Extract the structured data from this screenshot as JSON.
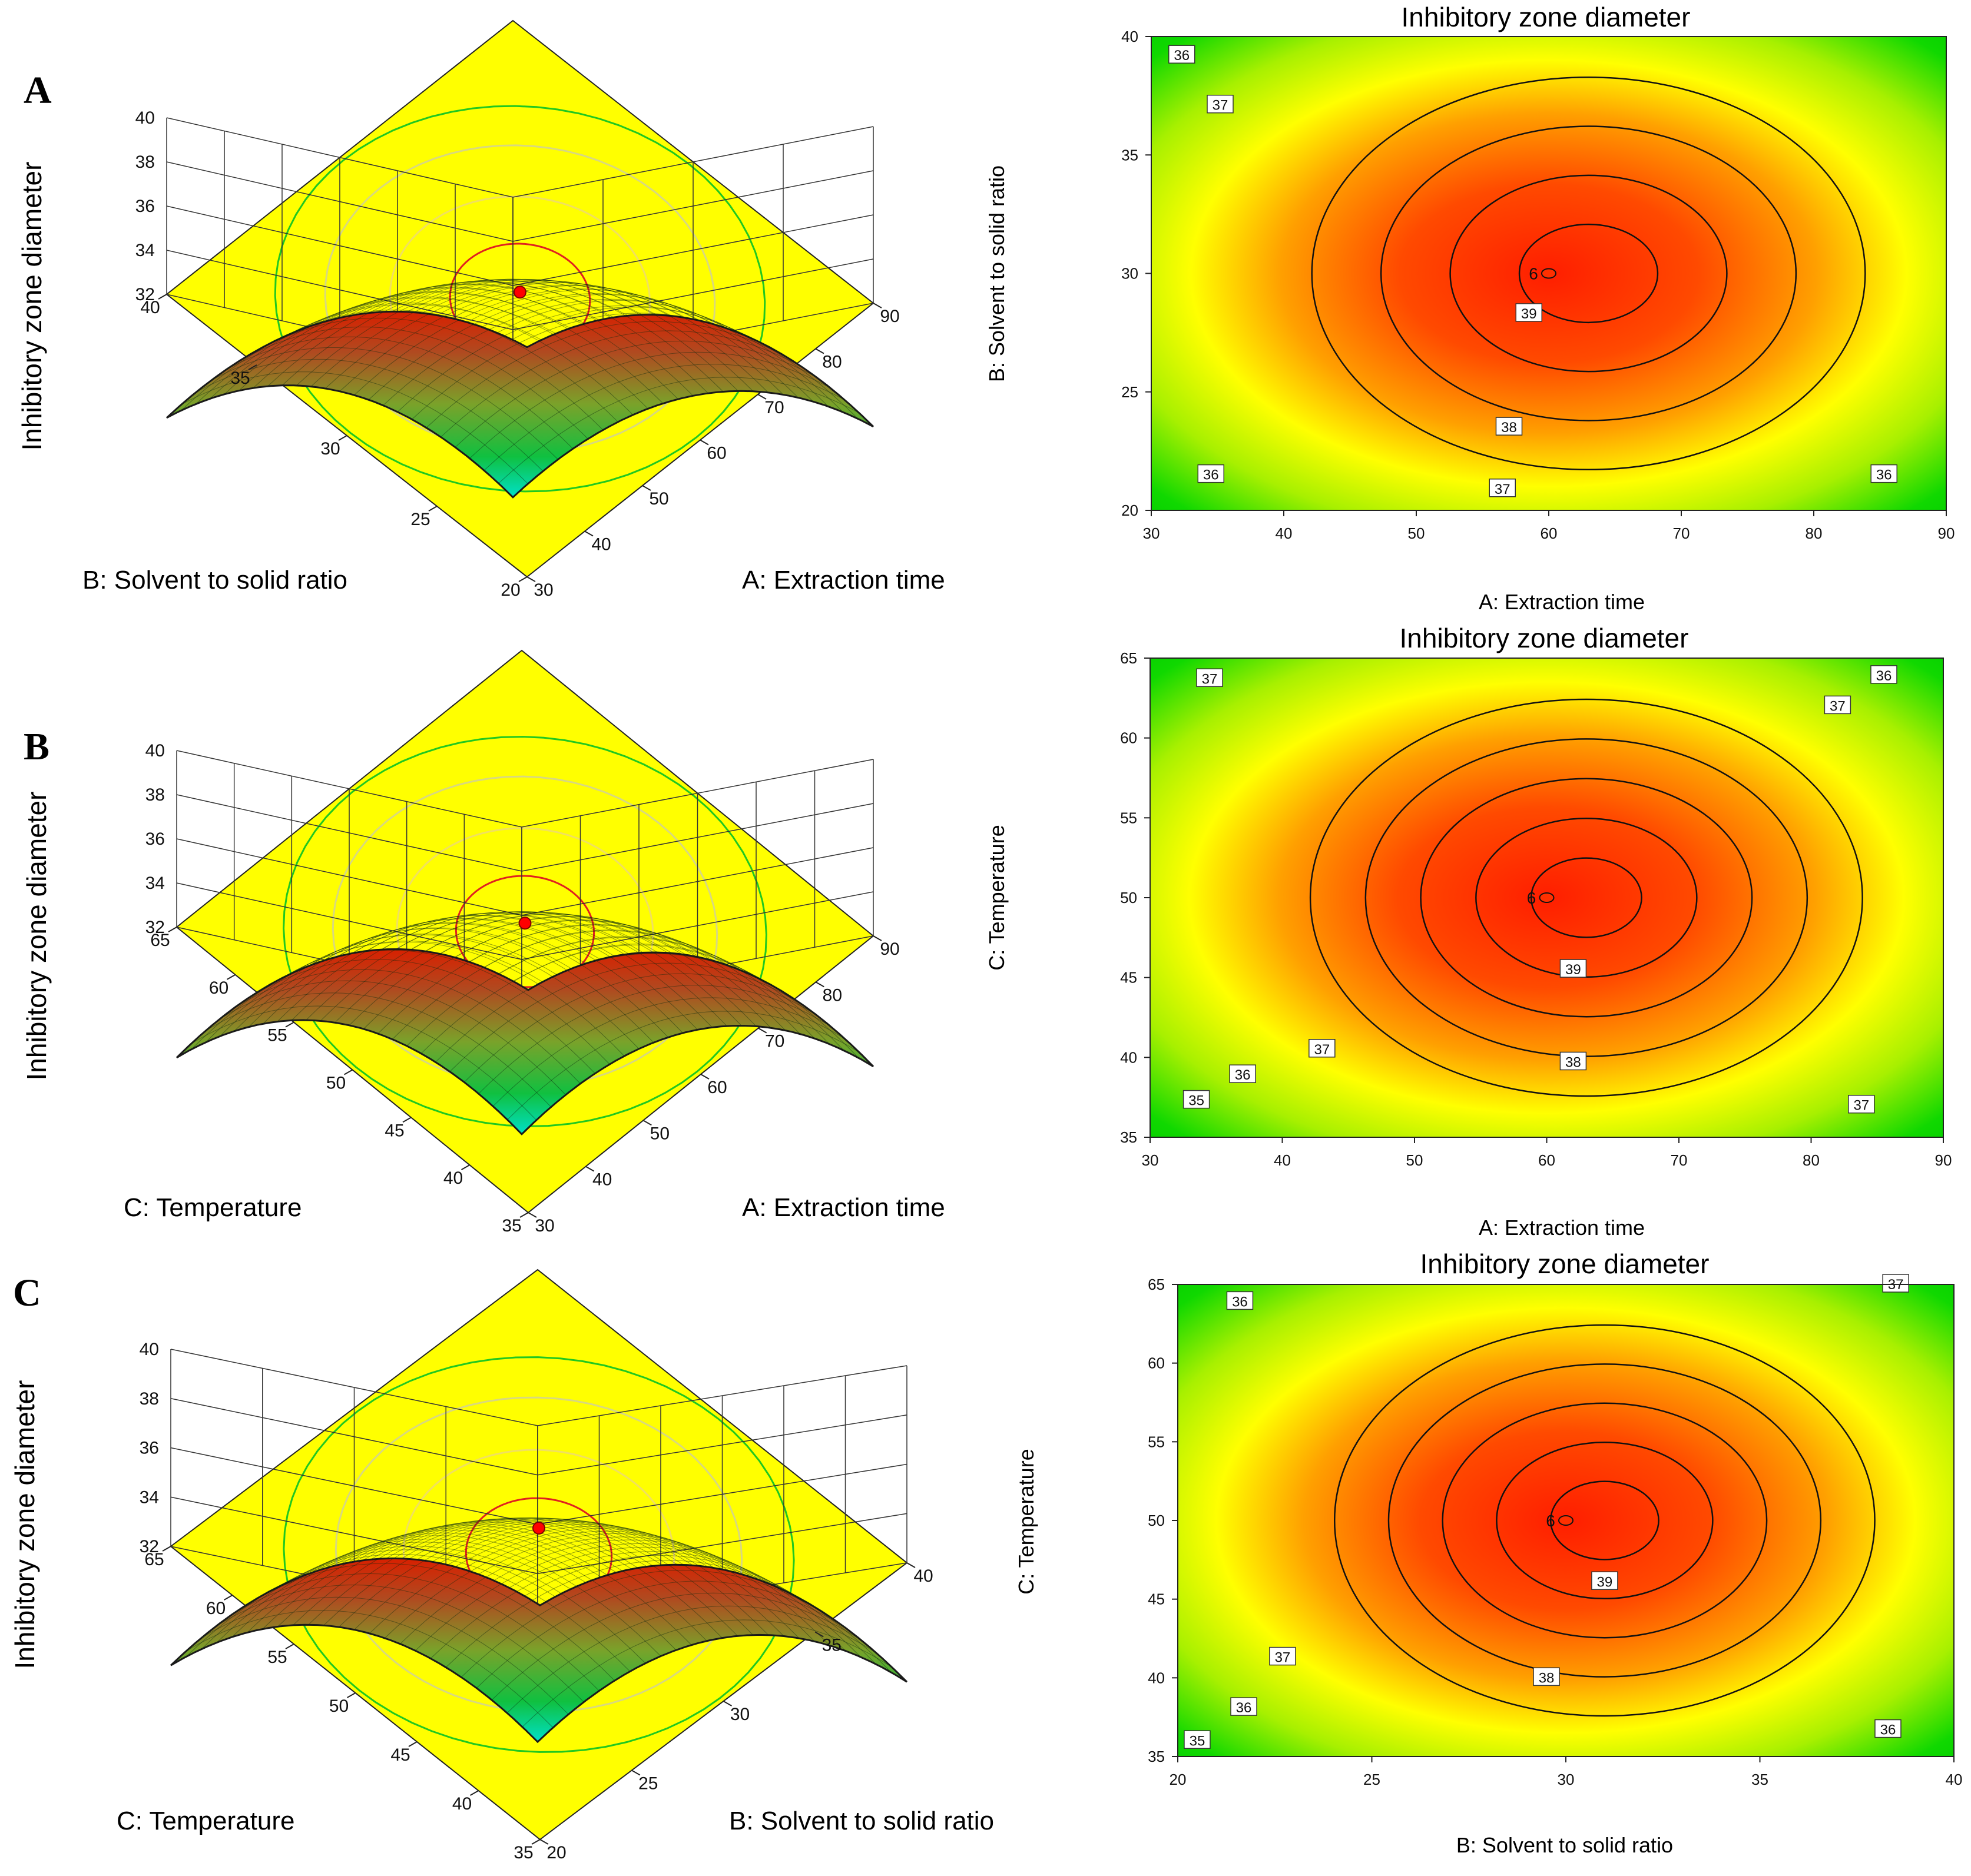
{
  "figure": {
    "panel_labels": [
      "A",
      "B",
      "C"
    ],
    "colors": {
      "low": "#00e0c8",
      "green": "#00d400",
      "yellow": "#ffff00",
      "orange": "#ff9a00",
      "red": "#ff1e00",
      "floor": "#ffff00",
      "point": "#ff0000"
    }
  },
  "chart_data": [
    {
      "type": "surface3d",
      "panel": "A",
      "zlabel": "Inhibitory zone diameter",
      "xlabel": "A: Extraction time",
      "ylabel": "B: Solvent to solid ratio",
      "xlim": [
        30,
        90
      ],
      "ylim": [
        20,
        40
      ],
      "zlim": [
        32,
        40
      ],
      "xticks": [
        30,
        40,
        50,
        60,
        70,
        80,
        90
      ],
      "yticks": [
        20,
        25,
        30,
        35,
        40
      ],
      "zticks": [
        32,
        34,
        36,
        38,
        40
      ],
      "model": {
        "max": 39.5,
        "x0": 60,
        "y0": 30,
        "ax": 30,
        "ay": 10,
        "ka": 3.0,
        "kb": 3.0
      },
      "optimum_point": {
        "x": 60,
        "y": 30,
        "z": 39.5
      },
      "corner_values": [
        35.5,
        35.5,
        33.5,
        33.5
      ]
    },
    {
      "type": "contour",
      "panel": "A",
      "title": "Inhibitory zone diameter",
      "xlabel": "A: Extraction time",
      "ylabel": "B: Solvent to solid ratio",
      "xlim": [
        30,
        90
      ],
      "ylim": [
        20,
        40
      ],
      "xticks": [
        "30",
        "40",
        "50",
        "60",
        "70",
        "80",
        "90"
      ],
      "yticks": [
        "20",
        "25",
        "30",
        "35",
        "40"
      ],
      "levels": [
        36,
        37,
        38,
        39
      ],
      "contour_labels": [
        {
          "text": "36",
          "x": 32.3,
          "y": 39.2
        },
        {
          "text": "37",
          "x": 35.2,
          "y": 37.1
        },
        {
          "text": "39",
          "x": 58.5,
          "y": 28.3
        },
        {
          "text": "38",
          "x": 57.0,
          "y": 23.5
        },
        {
          "text": "36",
          "x": 34.5,
          "y": 21.5
        },
        {
          "text": "37",
          "x": 56.5,
          "y": 20.9
        },
        {
          "text": "36",
          "x": 85.3,
          "y": 21.5
        }
      ],
      "design_point": {
        "label": "6",
        "x": 60,
        "y": 30
      }
    },
    {
      "type": "surface3d",
      "panel": "B",
      "zlabel": "Inhibitory zone diameter",
      "xlabel": "A: Extraction time",
      "ylabel": "C: Temperature",
      "xlim": [
        30,
        90
      ],
      "ylim": [
        35,
        65
      ],
      "zlim": [
        32,
        40
      ],
      "xticks": [
        30,
        40,
        50,
        60,
        70,
        80,
        90
      ],
      "yticks": [
        35,
        40,
        45,
        50,
        55,
        60,
        65
      ],
      "zticks": [
        32,
        34,
        36,
        38,
        40
      ],
      "model": {
        "max": 39.5,
        "x0": 60,
        "y0": 50,
        "ax": 30,
        "ay": 15,
        "ka": 3.2,
        "kb": 3.2
      },
      "optimum_point": {
        "x": 60,
        "y": 50,
        "z": 39.5
      },
      "corner_values": [
        36.0,
        36.0,
        33.0,
        33.0
      ]
    },
    {
      "type": "contour",
      "panel": "B",
      "title": "Inhibitory zone diameter",
      "xlabel": "A: Extraction time",
      "ylabel": "C: Temperature",
      "xlim": [
        30,
        90
      ],
      "ylim": [
        35,
        65
      ],
      "xticks": [
        "30",
        "40",
        "50",
        "60",
        "70",
        "80",
        "90"
      ],
      "yticks": [
        "35",
        "40",
        "45",
        "50",
        "55",
        "60",
        "65"
      ],
      "levels": [
        35,
        36,
        37,
        38,
        39
      ],
      "contour_labels": [
        {
          "text": "37",
          "x": 34.5,
          "y": 63.7
        },
        {
          "text": "36",
          "x": 85.5,
          "y": 63.9
        },
        {
          "text": "37",
          "x": 82.0,
          "y": 62.0
        },
        {
          "text": "39",
          "x": 62.0,
          "y": 45.5
        },
        {
          "text": "37",
          "x": 43.0,
          "y": 40.5
        },
        {
          "text": "38",
          "x": 62.0,
          "y": 39.7
        },
        {
          "text": "36",
          "x": 37.0,
          "y": 38.9
        },
        {
          "text": "35",
          "x": 33.5,
          "y": 37.3
        },
        {
          "text": "37",
          "x": 83.8,
          "y": 37.0
        }
      ],
      "design_point": {
        "label": "6",
        "x": 60,
        "y": 50
      }
    },
    {
      "type": "surface3d",
      "panel": "C",
      "zlabel": "Inhibitory zone diameter",
      "xlabel": "B: Solvent to solid ratio",
      "ylabel": "C: Temperature",
      "xlim": [
        20,
        40
      ],
      "ylim": [
        35,
        65
      ],
      "zlim": [
        32,
        40
      ],
      "xticks": [
        20,
        25,
        30,
        35,
        40
      ],
      "yticks": [
        35,
        40,
        45,
        50,
        55,
        60,
        65
      ],
      "zticks": [
        32,
        34,
        36,
        38,
        40
      ],
      "model": {
        "max": 39.5,
        "x0": 30,
        "y0": 50,
        "ax": 10,
        "ay": 15,
        "ka": 3.0,
        "kb": 3.0
      },
      "optimum_point": {
        "x": 30,
        "y": 50,
        "z": 39.5
      },
      "corner_values": [
        35.3,
        35.3,
        33.5,
        33.5
      ]
    },
    {
      "type": "contour",
      "panel": "C",
      "title": "Inhibitory zone diameter",
      "xlabel": "B: Solvent to solid ratio",
      "ylabel": "C: Temperature",
      "xlim": [
        20,
        40
      ],
      "ylim": [
        35,
        65
      ],
      "xticks": [
        "20",
        "25",
        "30",
        "35",
        "40"
      ],
      "yticks": [
        "35",
        "40",
        "45",
        "50",
        "55",
        "60",
        "65"
      ],
      "levels": [
        35,
        36,
        37,
        38,
        39
      ],
      "contour_labels": [
        {
          "text": "36",
          "x": 21.6,
          "y": 63.9
        },
        {
          "text": "37",
          "x": 38.5,
          "y": 65.0
        },
        {
          "text": "39",
          "x": 31.0,
          "y": 46.1
        },
        {
          "text": "37",
          "x": 22.7,
          "y": 41.3
        },
        {
          "text": "38",
          "x": 29.5,
          "y": 40.0
        },
        {
          "text": "36",
          "x": 21.7,
          "y": 38.1
        },
        {
          "text": "35",
          "x": 20.5,
          "y": 36.0
        },
        {
          "text": "36",
          "x": 38.3,
          "y": 36.7
        }
      ],
      "design_point": {
        "label": "6",
        "x": 30,
        "y": 50
      }
    }
  ]
}
